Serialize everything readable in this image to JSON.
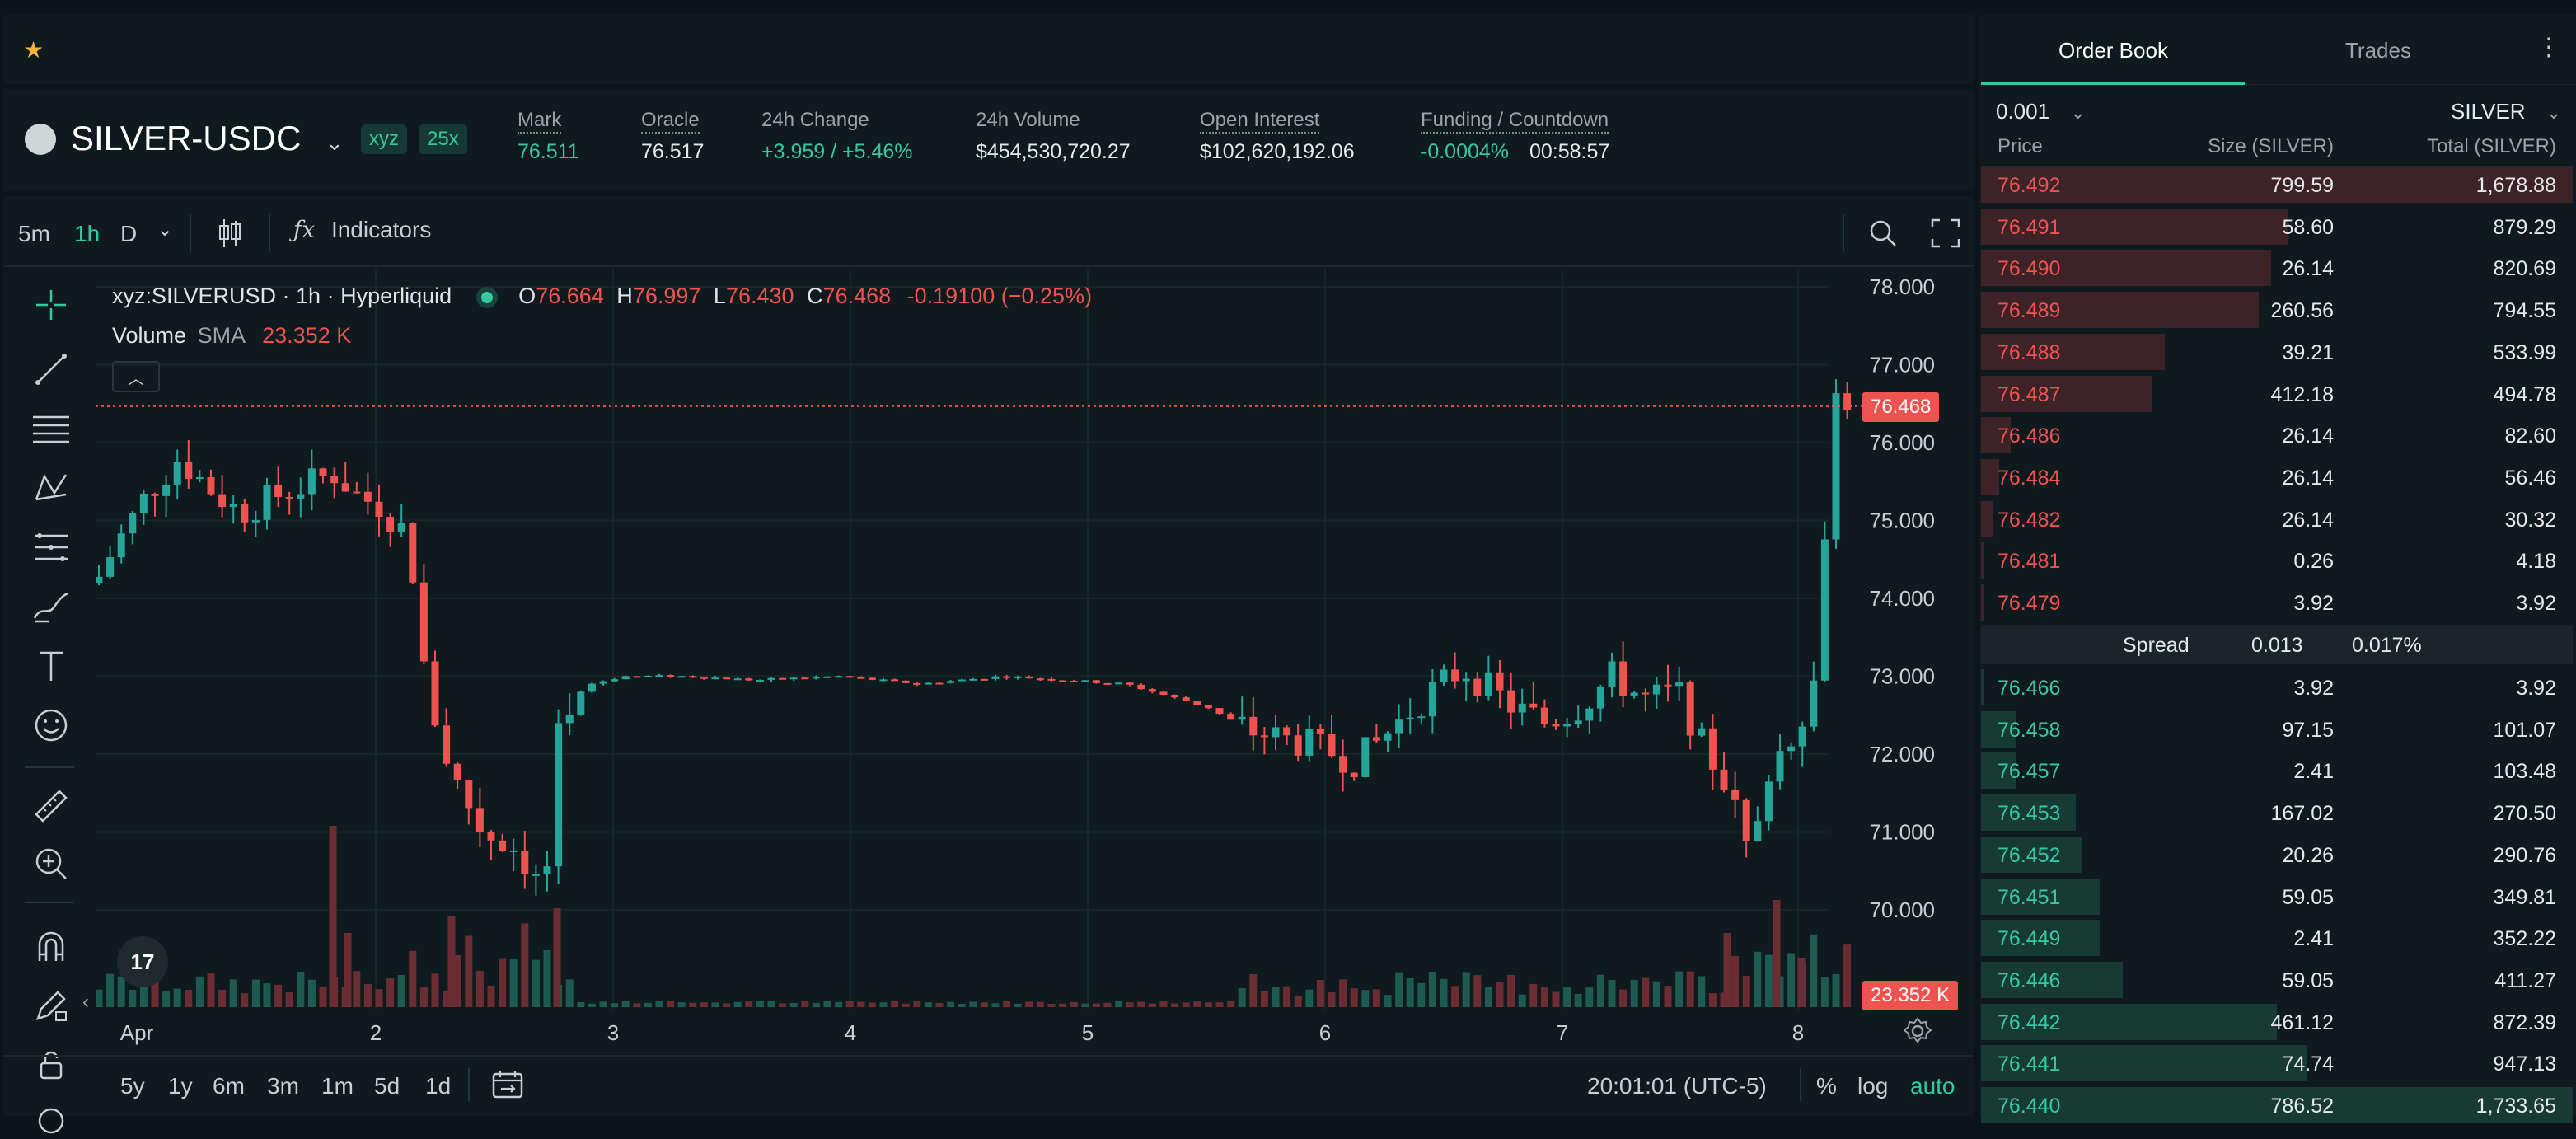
{
  "header": {
    "pair": "SILVER-USDC",
    "dex_badge": "xyz",
    "leverage_badge": "25x",
    "stats": [
      {
        "label": "Mark",
        "value": "76.511",
        "color": "green"
      },
      {
        "label": "Oracle",
        "value": "76.517",
        "color": "white"
      },
      {
        "label": "24h Change",
        "value": "+3.959 / +5.46%",
        "color": "green"
      },
      {
        "label": "24h Volume",
        "value": "$454,530,720.27",
        "color": "white"
      },
      {
        "label": "Open Interest",
        "value": "$102,620,192.06",
        "color": "white"
      }
    ],
    "funding_label": "Funding / Countdown",
    "funding_rate": "-0.0004%",
    "countdown": "00:58:57"
  },
  "toolbar": {
    "intervals": [
      "5m",
      "1h",
      "D"
    ],
    "active_interval": "1h",
    "indicators_label": "Indicators"
  },
  "chart_legend": {
    "symbol": "xyz:SILVERUSD · 1h · Hyperliquid",
    "o_label": "O",
    "o": "76.664",
    "h_label": "H",
    "h": "76.997",
    "l_label": "L",
    "l": "76.430",
    "c_label": "C",
    "c": "76.468",
    "change": "-0.19100 (−0.25%)",
    "volume_label": "Volume",
    "sma_label": "SMA",
    "volume_value": "23.352 K"
  },
  "price_axis": {
    "ticks": [
      "78.000",
      "77.000",
      "76.000",
      "75.000",
      "74.000",
      "73.000",
      "72.000",
      "71.000",
      "70.000"
    ],
    "last_price_tag": "76.468",
    "volume_tag": "23.352 K"
  },
  "time_axis": {
    "ticks": [
      "Apr",
      "2",
      "3",
      "4",
      "5",
      "6",
      "7",
      "8"
    ]
  },
  "bottom_bar": {
    "ranges": [
      "5y",
      "1y",
      "6m",
      "3m",
      "1m",
      "5d",
      "1d"
    ],
    "clock": "20:01:01 (UTC-5)",
    "percent": "%",
    "log": "log",
    "auto": "auto"
  },
  "order_book": {
    "tabs": [
      "Order Book",
      "Trades"
    ],
    "active_tab": "Order Book",
    "tick_size": "0.001",
    "unit": "SILVER",
    "columns": [
      "Price",
      "Size (SILVER)",
      "Total (SILVER)"
    ],
    "asks": [
      {
        "price": "76.492",
        "size": "799.59",
        "total": "1,678.88",
        "depth": 1.0
      },
      {
        "price": "76.491",
        "size": "58.60",
        "total": "879.29",
        "depth": 0.52
      },
      {
        "price": "76.490",
        "size": "26.14",
        "total": "820.69",
        "depth": 0.49
      },
      {
        "price": "76.489",
        "size": "260.56",
        "total": "794.55",
        "depth": 0.47
      },
      {
        "price": "76.488",
        "size": "39.21",
        "total": "533.99",
        "depth": 0.31
      },
      {
        "price": "76.487",
        "size": "412.18",
        "total": "494.78",
        "depth": 0.29
      },
      {
        "price": "76.486",
        "size": "26.14",
        "total": "82.60",
        "depth": 0.05
      },
      {
        "price": "76.484",
        "size": "26.14",
        "total": "56.46",
        "depth": 0.03
      },
      {
        "price": "76.482",
        "size": "26.14",
        "total": "30.32",
        "depth": 0.02
      },
      {
        "price": "76.481",
        "size": "0.26",
        "total": "4.18",
        "depth": 0.003
      },
      {
        "price": "76.479",
        "size": "3.92",
        "total": "3.92",
        "depth": 0.002
      }
    ],
    "spread_label": "Spread",
    "spread_value": "0.013",
    "spread_pct": "0.017%",
    "bids": [
      {
        "price": "76.466",
        "size": "3.92",
        "total": "3.92",
        "depth": 0.002
      },
      {
        "price": "76.458",
        "size": "97.15",
        "total": "101.07",
        "depth": 0.06
      },
      {
        "price": "76.457",
        "size": "2.41",
        "total": "103.48",
        "depth": 0.06
      },
      {
        "price": "76.453",
        "size": "167.02",
        "total": "270.50",
        "depth": 0.16
      },
      {
        "price": "76.452",
        "size": "20.26",
        "total": "290.76",
        "depth": 0.17
      },
      {
        "price": "76.451",
        "size": "59.05",
        "total": "349.81",
        "depth": 0.2
      },
      {
        "price": "76.449",
        "size": "2.41",
        "total": "352.22",
        "depth": 0.2
      },
      {
        "price": "76.446",
        "size": "59.05",
        "total": "411.27",
        "depth": 0.24
      },
      {
        "price": "76.442",
        "size": "461.12",
        "total": "872.39",
        "depth": 0.5
      },
      {
        "price": "76.441",
        "size": "74.74",
        "total": "947.13",
        "depth": 0.55
      },
      {
        "price": "76.440",
        "size": "786.52",
        "total": "1,733.65",
        "depth": 1.0
      }
    ]
  }
}
